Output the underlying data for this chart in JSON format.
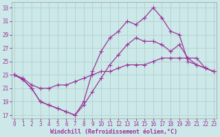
{
  "background_color": "#cce8e8",
  "line_color": "#993399",
  "grid_color": "#aacccc",
  "xlim_min": -0.3,
  "xlim_max": 23.3,
  "ylim_min": 16.5,
  "ylim_max": 33.8,
  "xticks": [
    0,
    1,
    2,
    3,
    4,
    5,
    6,
    7,
    8,
    9,
    10,
    11,
    12,
    13,
    14,
    15,
    16,
    17,
    18,
    19,
    20,
    21,
    22,
    23
  ],
  "yticks": [
    17,
    19,
    21,
    23,
    25,
    27,
    29,
    31,
    33
  ],
  "curve1_x": [
    0,
    1,
    2,
    3,
    4,
    5,
    6,
    7,
    8,
    9,
    10,
    11,
    12,
    13,
    14,
    15,
    16,
    17,
    18,
    19,
    20,
    21,
    22,
    23
  ],
  "curve1_y": [
    23.0,
    22.3,
    21.0,
    19.0,
    18.5,
    18.0,
    17.5,
    17.0,
    19.0,
    23.5,
    26.5,
    28.5,
    29.5,
    31.0,
    30.5,
    31.5,
    33.0,
    31.5,
    29.5,
    29.0,
    25.0,
    24.5,
    24.0,
    23.5
  ],
  "curve2_x": [
    0,
    1,
    2,
    3,
    4,
    5,
    6,
    7,
    8,
    9,
    10,
    11,
    12,
    13,
    14,
    15,
    16,
    17,
    18,
    19,
    20,
    21,
    22,
    23
  ],
  "curve2_y": [
    23.0,
    22.3,
    21.0,
    19.0,
    18.5,
    18.0,
    17.5,
    17.0,
    18.5,
    20.5,
    22.5,
    24.5,
    26.0,
    27.5,
    28.5,
    28.0,
    28.0,
    27.5,
    26.5,
    27.5,
    25.5,
    24.5,
    24.0,
    23.5
  ],
  "curve3_x": [
    0,
    1,
    2,
    3,
    4,
    5,
    6,
    7,
    8,
    9,
    10,
    11,
    12,
    13,
    14,
    15,
    16,
    17,
    18,
    19,
    20,
    21,
    22,
    23
  ],
  "curve3_y": [
    23.0,
    22.5,
    21.5,
    21.0,
    21.0,
    21.5,
    21.5,
    22.0,
    22.5,
    23.0,
    23.5,
    23.5,
    24.0,
    24.5,
    24.5,
    24.5,
    25.0,
    25.5,
    25.5,
    25.5,
    25.5,
    25.5,
    24.0,
    23.5
  ],
  "xlabel": "Windchill (Refroidissement éolien,°C)",
  "xlabel_fontsize": 6.0,
  "tick_fontsize": 5.5,
  "linewidth": 0.9,
  "markersize": 2.2
}
